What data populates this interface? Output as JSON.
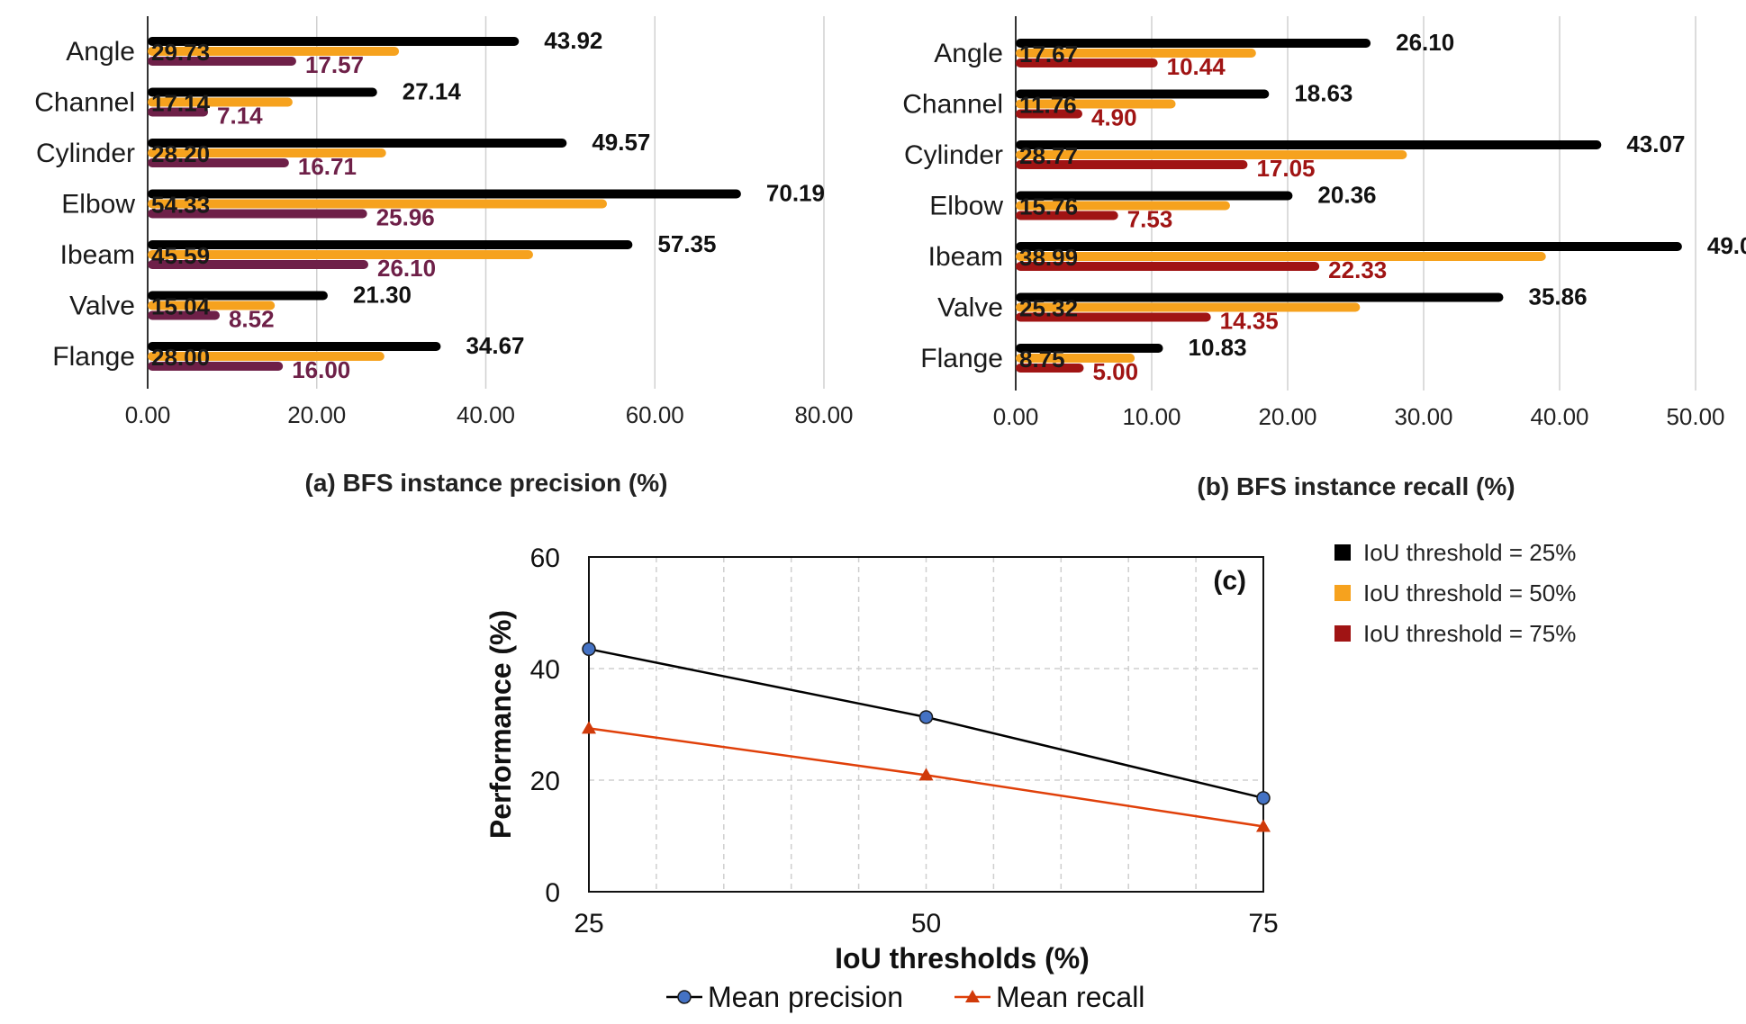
{
  "chart_data": [
    {
      "type": "bar",
      "orientation": "horizontal",
      "caption": "(a) BFS instance precision (%)",
      "categories": [
        "Angle",
        "Channel",
        "Cylinder",
        "Elbow",
        "Ibeam",
        "Valve",
        "Flange"
      ],
      "series": [
        {
          "name": "IoU threshold = 25%",
          "color": "#000000",
          "label_color": "#111111",
          "values": [
            43.92,
            27.14,
            49.57,
            70.19,
            57.35,
            21.3,
            34.67
          ],
          "labels": [
            "43.92",
            "27.14",
            "49.57",
            "70.19",
            "57.35",
            "21.30",
            "34.67"
          ]
        },
        {
          "name": "IoU threshold = 50%",
          "color": "#f6a21e",
          "label_color": "#1a1a1a",
          "values": [
            29.73,
            17.14,
            28.2,
            54.33,
            45.59,
            15.04,
            28.0
          ],
          "labels": [
            "29.73",
            "17.14",
            "28.20",
            "54.33",
            "45.59",
            "15.04",
            "28.00"
          ]
        },
        {
          "name": "IoU threshold = 75%",
          "color": "#6e2048",
          "label_color": "#6e2048",
          "values": [
            17.57,
            7.14,
            16.71,
            25.96,
            26.1,
            8.52,
            16.0
          ],
          "labels": [
            "17.57",
            "7.14",
            "16.71",
            "25.96",
            "26.10",
            "8.52",
            "16.00"
          ]
        }
      ],
      "xlim": [
        0,
        80
      ],
      "xticks": [
        0,
        20,
        40,
        60,
        80
      ],
      "xtick_labels": [
        "0.00",
        "20.00",
        "40.00",
        "60.00",
        "80.00"
      ],
      "grid": true
    },
    {
      "type": "bar",
      "orientation": "horizontal",
      "caption": "(b) BFS instance recall (%)",
      "categories": [
        "Angle",
        "Channel",
        "Cylinder",
        "Elbow",
        "Ibeam",
        "Valve",
        "Flange"
      ],
      "series": [
        {
          "name": "IoU threshold = 25%",
          "color": "#000000",
          "label_color": "#111111",
          "values": [
            26.1,
            18.63,
            43.07,
            20.36,
            49.0,
            35.86,
            10.83
          ],
          "labels": [
            "26.10",
            "18.63",
            "43.07",
            "20.36",
            "49.0",
            "35.86",
            "10.83"
          ]
        },
        {
          "name": "IoU threshold = 50%",
          "color": "#f6a21e",
          "label_color": "#1a1a1a",
          "values": [
            17.67,
            11.76,
            28.77,
            15.76,
            38.99,
            25.32,
            8.75
          ],
          "labels": [
            "17.67",
            "11.76",
            "28.77",
            "15.76",
            "38.99",
            "25.32",
            "8.75"
          ]
        },
        {
          "name": "IoU threshold = 75%",
          "color": "#a01414",
          "label_color": "#a01414",
          "values": [
            10.44,
            4.9,
            17.05,
            7.53,
            22.33,
            14.35,
            5.0
          ],
          "labels": [
            "10.44",
            "4.90",
            "17.05",
            "7.53",
            "22.33",
            "14.35",
            "5.00"
          ]
        }
      ],
      "xlim": [
        0,
        50
      ],
      "xticks": [
        0,
        10,
        20,
        30,
        40,
        50
      ],
      "xtick_labels": [
        "0.00",
        "10.00",
        "20.00",
        "30.00",
        "40.00",
        "50.00"
      ],
      "grid": true
    },
    {
      "type": "line",
      "label": "(c)",
      "xlabel": "IoU thresholds (%)",
      "ylabel": "Performance (%)",
      "x": [
        25,
        50,
        75
      ],
      "xlim": [
        25,
        75
      ],
      "ylim": [
        0,
        60
      ],
      "xticks": [
        25,
        50,
        75
      ],
      "yticks": [
        0,
        20,
        40,
        60
      ],
      "grid": true,
      "series": [
        {
          "name": "Mean precision",
          "values": [
            43.5,
            31.3,
            16.8
          ],
          "line_color": "#000000",
          "marker": "circle",
          "marker_color": "#4472c4"
        },
        {
          "name": "Mean recall",
          "values": [
            29.3,
            20.9,
            11.7
          ],
          "line_color": "#e0400a",
          "marker": "triangle",
          "marker_color": "#d03a0a"
        }
      ]
    }
  ],
  "legend": {
    "position": "right",
    "entries": [
      {
        "label": "IoU threshold = 25%",
        "color": "#000000"
      },
      {
        "label": "IoU threshold = 50%",
        "color": "#f6a21e"
      },
      {
        "label": "IoU threshold = 75%",
        "color": "#a01414"
      }
    ]
  }
}
